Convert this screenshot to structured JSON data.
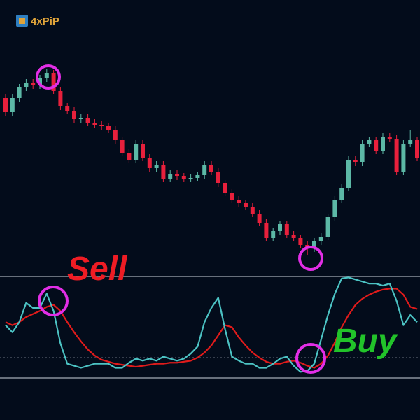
{
  "logo": "4xPiP",
  "chart_data": [
    {
      "type": "candlestick",
      "bull_color": "#5cb8a6",
      "bear_color": "#e8203c",
      "ylim": [
        0,
        310
      ],
      "open": [
        250,
        230,
        250,
        265,
        272,
        268,
        278,
        285,
        260,
        238,
        232,
        220,
        222,
        215,
        212,
        210,
        205,
        190,
        172,
        162,
        185,
        165,
        150,
        155,
        135,
        142,
        138,
        135,
        136,
        140,
        155,
        145,
        128,
        115,
        105,
        100,
        95,
        85,
        72,
        50,
        60,
        70,
        55,
        50,
        40,
        35,
        45,
        52,
        80,
        105,
        122,
        162,
        158,
        185,
        190,
        175,
        195,
        192,
        145,
        185,
        190
      ],
      "high": [
        255,
        255,
        270,
        277,
        277,
        283,
        292,
        290,
        265,
        243,
        237,
        227,
        227,
        220,
        217,
        215,
        210,
        195,
        177,
        190,
        190,
        170,
        160,
        160,
        147,
        147,
        143,
        141,
        145,
        160,
        160,
        150,
        133,
        120,
        110,
        105,
        100,
        90,
        77,
        65,
        75,
        75,
        60,
        55,
        45,
        50,
        57,
        85,
        110,
        127,
        167,
        167,
        190,
        195,
        195,
        200,
        200,
        197,
        190,
        205,
        195
      ],
      "low": [
        225,
        225,
        245,
        260,
        263,
        263,
        273,
        255,
        233,
        227,
        215,
        215,
        210,
        207,
        205,
        200,
        185,
        167,
        157,
        157,
        160,
        145,
        145,
        130,
        130,
        133,
        130,
        130,
        131,
        135,
        140,
        123,
        110,
        100,
        95,
        90,
        80,
        67,
        45,
        45,
        55,
        50,
        45,
        35,
        25,
        30,
        40,
        47,
        75,
        100,
        117,
        153,
        153,
        180,
        170,
        170,
        187,
        140,
        140,
        180,
        160
      ],
      "close": [
        230,
        250,
        265,
        272,
        268,
        278,
        285,
        260,
        238,
        232,
        220,
        222,
        215,
        212,
        210,
        205,
        190,
        172,
        162,
        185,
        165,
        150,
        155,
        135,
        142,
        138,
        135,
        136,
        140,
        155,
        145,
        128,
        115,
        105,
        100,
        95,
        85,
        72,
        50,
        60,
        70,
        55,
        50,
        40,
        35,
        45,
        52,
        80,
        105,
        122,
        162,
        158,
        185,
        190,
        175,
        195,
        192,
        145,
        185,
        190,
        165
      ]
    },
    {
      "type": "line",
      "ylim": [
        0,
        100
      ],
      "levels": [
        70,
        20
      ],
      "annotations": [
        "Sell",
        "Buy"
      ],
      "series": [
        {
          "color": "#4cc3c4",
          "values": [
            52,
            45,
            55,
            74,
            69,
            69,
            83,
            66,
            34,
            14,
            12,
            10,
            12,
            14,
            14,
            14,
            10,
            10,
            15,
            19,
            17,
            19,
            17,
            21,
            19,
            17,
            19,
            24,
            31,
            55,
            69,
            79,
            48,
            21,
            17,
            14,
            14,
            10,
            10,
            14,
            19,
            21,
            12,
            6,
            7,
            14,
            38,
            62,
            83,
            98,
            99,
            97,
            95,
            93,
            93,
            91,
            93,
            76,
            52,
            62,
            55
          ]
        },
        {
          "color": "#e01b1b",
          "values": [
            55,
            52,
            55,
            60,
            63,
            66,
            70,
            72,
            66,
            55,
            45,
            36,
            28,
            22,
            18,
            16,
            14,
            13,
            12,
            11,
            12,
            13,
            14,
            14,
            15,
            15,
            16,
            17,
            20,
            25,
            32,
            42,
            52,
            50,
            40,
            32,
            25,
            20,
            16,
            14,
            14,
            16,
            17,
            15,
            12,
            10,
            14,
            22,
            35,
            50,
            62,
            72,
            78,
            82,
            85,
            87,
            88,
            88,
            82,
            70,
            68
          ]
        }
      ]
    }
  ]
}
